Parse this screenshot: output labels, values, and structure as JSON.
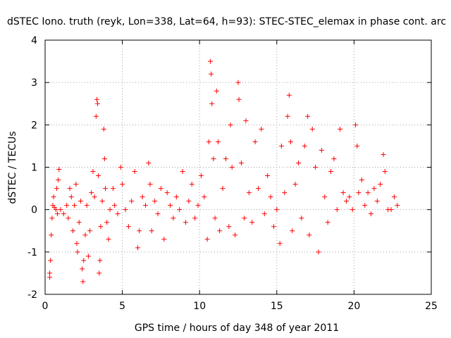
{
  "chart_data": {
    "type": "scatter",
    "title": "dSTEC Iono. truth (reyk, Lon=338, Lat=64, h=93): STEC-STEC_elemax in phase cont. arc",
    "xlabel": "GPS time / hours of day 348 of year 2011",
    "ylabel": "dSTEC  / TECUs",
    "xlim": [
      0,
      25
    ],
    "ylim": [
      -2,
      4
    ],
    "xticks": [
      0,
      5,
      10,
      15,
      20,
      25
    ],
    "yticks": [
      -2,
      -1,
      0,
      1,
      2,
      3,
      4
    ],
    "xtick_labels": [
      "0",
      "5",
      "10",
      "15",
      "20",
      "25"
    ],
    "ytick_labels": [
      "-2",
      "-1",
      "0",
      "1",
      "2",
      "3",
      "4"
    ],
    "grid": true,
    "legend": "none",
    "marker": "plus",
    "color": "#ff0000",
    "series": [
      {
        "points": [
          [
            0.3,
            -1.5
          ],
          [
            0.3,
            -1.6
          ],
          [
            0.35,
            -1.2
          ],
          [
            0.4,
            -0.6
          ],
          [
            0.45,
            -0.2
          ],
          [
            0.5,
            0.1
          ],
          [
            0.55,
            0.3
          ],
          [
            0.6,
            0.05
          ],
          [
            0.7,
            0.0
          ],
          [
            0.8,
            -0.1
          ],
          [
            0.75,
            0.5
          ],
          [
            0.85,
            0.7
          ],
          [
            0.9,
            0.95
          ],
          [
            1.0,
            0.0
          ],
          [
            1.2,
            -0.1
          ],
          [
            1.4,
            0.1
          ],
          [
            1.5,
            -0.2
          ],
          [
            1.6,
            0.5
          ],
          [
            1.7,
            0.3
          ],
          [
            1.8,
            -0.5
          ],
          [
            1.9,
            0.1
          ],
          [
            2.0,
            0.6
          ],
          [
            2.05,
            -0.8
          ],
          [
            2.1,
            -1.0
          ],
          [
            2.2,
            -0.3
          ],
          [
            2.3,
            0.2
          ],
          [
            2.4,
            -1.4
          ],
          [
            2.45,
            -1.7
          ],
          [
            2.5,
            -1.2
          ],
          [
            2.6,
            -0.6
          ],
          [
            2.7,
            0.1
          ],
          [
            2.8,
            -1.1
          ],
          [
            2.9,
            -0.5
          ],
          [
            3.0,
            0.4
          ],
          [
            3.1,
            0.9
          ],
          [
            3.2,
            0.3
          ],
          [
            3.3,
            2.2
          ],
          [
            3.35,
            2.6
          ],
          [
            3.4,
            2.5
          ],
          [
            3.45,
            0.8
          ],
          [
            3.5,
            -1.5
          ],
          [
            3.55,
            -1.2
          ],
          [
            3.6,
            -0.4
          ],
          [
            3.7,
            0.2
          ],
          [
            3.8,
            1.9
          ],
          [
            3.85,
            1.2
          ],
          [
            3.9,
            0.5
          ],
          [
            4.0,
            -0.3
          ],
          [
            4.1,
            -0.7
          ],
          [
            4.2,
            0.0
          ],
          [
            4.4,
            0.5
          ],
          [
            4.5,
            0.1
          ],
          [
            4.7,
            -0.1
          ],
          [
            4.9,
            1.0
          ],
          [
            5.0,
            0.6
          ],
          [
            5.2,
            0.0
          ],
          [
            5.4,
            -0.4
          ],
          [
            5.6,
            0.2
          ],
          [
            5.8,
            0.9
          ],
          [
            6.0,
            -0.9
          ],
          [
            6.1,
            -0.5
          ],
          [
            6.3,
            0.3
          ],
          [
            6.5,
            0.1
          ],
          [
            6.7,
            1.1
          ],
          [
            6.8,
            0.6
          ],
          [
            6.9,
            -0.5
          ],
          [
            7.1,
            0.2
          ],
          [
            7.3,
            -0.1
          ],
          [
            7.5,
            0.5
          ],
          [
            7.7,
            -0.7
          ],
          [
            7.9,
            0.4
          ],
          [
            8.1,
            0.1
          ],
          [
            8.3,
            -0.2
          ],
          [
            8.5,
            0.3
          ],
          [
            8.7,
            0.0
          ],
          [
            8.9,
            0.9
          ],
          [
            9.1,
            -0.3
          ],
          [
            9.3,
            0.2
          ],
          [
            9.5,
            0.6
          ],
          [
            9.7,
            -0.2
          ],
          [
            9.9,
            0.1
          ],
          [
            10.1,
            0.8
          ],
          [
            10.3,
            0.3
          ],
          [
            10.5,
            -0.7
          ],
          [
            10.6,
            1.6
          ],
          [
            10.7,
            3.5
          ],
          [
            10.75,
            3.2
          ],
          [
            10.8,
            2.5
          ],
          [
            10.9,
            1.2
          ],
          [
            11.0,
            -0.2
          ],
          [
            11.1,
            2.8
          ],
          [
            11.2,
            1.6
          ],
          [
            11.3,
            -0.5
          ],
          [
            11.5,
            0.5
          ],
          [
            11.7,
            1.2
          ],
          [
            11.9,
            -0.4
          ],
          [
            12.0,
            2.0
          ],
          [
            12.1,
            1.0
          ],
          [
            12.3,
            -0.6
          ],
          [
            12.5,
            3.0
          ],
          [
            12.55,
            2.6
          ],
          [
            12.7,
            1.1
          ],
          [
            12.9,
            -0.2
          ],
          [
            13.0,
            2.1
          ],
          [
            13.2,
            0.4
          ],
          [
            13.4,
            -0.3
          ],
          [
            13.6,
            1.6
          ],
          [
            13.8,
            0.5
          ],
          [
            14.0,
            1.9
          ],
          [
            14.2,
            -0.1
          ],
          [
            14.4,
            0.8
          ],
          [
            14.6,
            0.3
          ],
          [
            14.8,
            -0.4
          ],
          [
            15.0,
            0.0
          ],
          [
            15.2,
            -0.8
          ],
          [
            15.3,
            1.5
          ],
          [
            15.5,
            0.4
          ],
          [
            15.7,
            2.2
          ],
          [
            15.8,
            2.7
          ],
          [
            15.9,
            1.6
          ],
          [
            16.0,
            -0.5
          ],
          [
            16.2,
            0.6
          ],
          [
            16.4,
            1.1
          ],
          [
            16.6,
            -0.2
          ],
          [
            16.8,
            1.5
          ],
          [
            17.0,
            2.2
          ],
          [
            17.1,
            -0.6
          ],
          [
            17.3,
            1.9
          ],
          [
            17.5,
            1.0
          ],
          [
            17.7,
            -1.0
          ],
          [
            17.9,
            1.4
          ],
          [
            18.1,
            0.3
          ],
          [
            18.3,
            -0.3
          ],
          [
            18.5,
            0.9
          ],
          [
            18.7,
            1.2
          ],
          [
            18.9,
            0.0
          ],
          [
            19.1,
            1.9
          ],
          [
            19.3,
            0.4
          ],
          [
            19.5,
            0.2
          ],
          [
            19.7,
            0.3
          ],
          [
            19.9,
            0.0
          ],
          [
            20.1,
            2.0
          ],
          [
            20.2,
            1.5
          ],
          [
            20.3,
            0.4
          ],
          [
            20.5,
            0.7
          ],
          [
            20.7,
            0.1
          ],
          [
            20.9,
            0.4
          ],
          [
            21.1,
            -0.1
          ],
          [
            21.3,
            0.5
          ],
          [
            21.5,
            0.2
          ],
          [
            21.7,
            0.6
          ],
          [
            21.9,
            1.3
          ],
          [
            22.0,
            0.9
          ],
          [
            22.2,
            0.0
          ],
          [
            22.4,
            0.0
          ],
          [
            22.6,
            0.3
          ],
          [
            22.8,
            0.1
          ]
        ]
      }
    ]
  }
}
